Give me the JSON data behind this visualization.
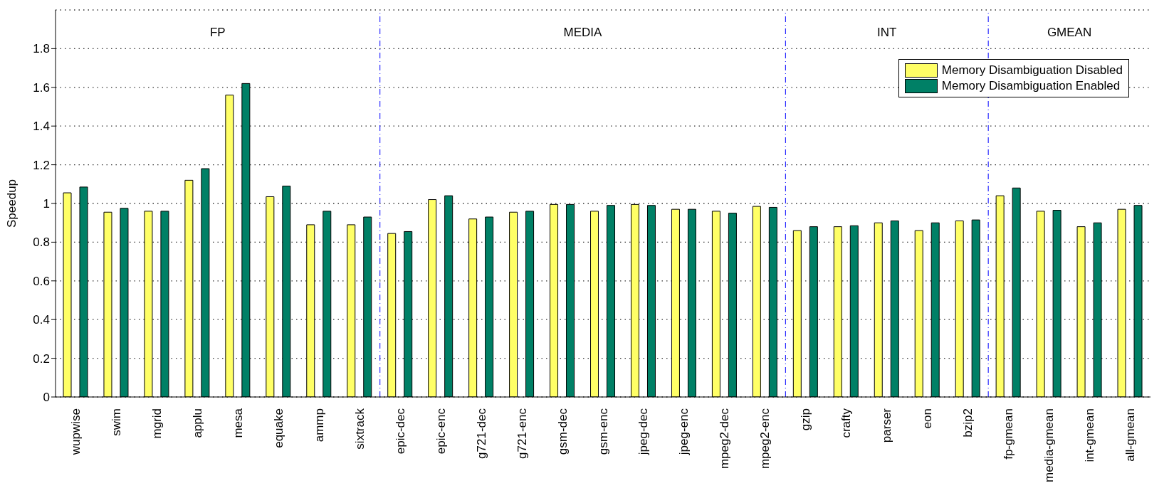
{
  "chart_data": {
    "type": "bar",
    "ylabel": "Speedup",
    "categories": [
      "wupwise",
      "swim",
      "mgrid",
      "applu",
      "mesa",
      "equake",
      "ammp",
      "sixtrack",
      "epic-dec",
      "epic-enc",
      "g721-dec",
      "g721-enc",
      "gsm-dec",
      "gsm-enc",
      "jpeg-dec",
      "jpeg-enc",
      "mpeg2-dec",
      "mpeg2-enc",
      "gzip",
      "crafty",
      "parser",
      "eon",
      "bzip2",
      "fp-gmean",
      "media-gmean",
      "int-gmean",
      "all-gmean"
    ],
    "series": [
      {
        "name": "Memory Disambiguation Disabled",
        "color": "#ffff66",
        "values": [
          1.055,
          0.955,
          0.96,
          1.12,
          1.56,
          1.035,
          0.89,
          0.89,
          0.845,
          1.02,
          0.92,
          0.955,
          0.995,
          0.96,
          0.995,
          0.97,
          0.96,
          0.985,
          0.86,
          0.88,
          0.9,
          0.86,
          0.91,
          1.04,
          0.96,
          0.88,
          0.97
        ]
      },
      {
        "name": "Memory Disambiguation Enabled",
        "color": "#008066",
        "values": [
          1.085,
          0.975,
          0.96,
          1.18,
          1.62,
          1.09,
          0.96,
          0.93,
          0.855,
          1.04,
          0.93,
          0.96,
          0.995,
          0.99,
          0.99,
          0.97,
          0.95,
          0.98,
          0.88,
          0.885,
          0.91,
          0.9,
          0.915,
          1.08,
          0.965,
          0.9,
          0.99
        ]
      }
    ],
    "ylim": [
      0,
      2
    ],
    "yticks": [
      0,
      0.2,
      0.4,
      0.6,
      0.8,
      1.0,
      1.2,
      1.4,
      1.6,
      1.8
    ],
    "grid": "y",
    "legend": "top right",
    "annotations": [
      "FP",
      "MEDIA",
      "INT",
      "GMEAN"
    ]
  }
}
